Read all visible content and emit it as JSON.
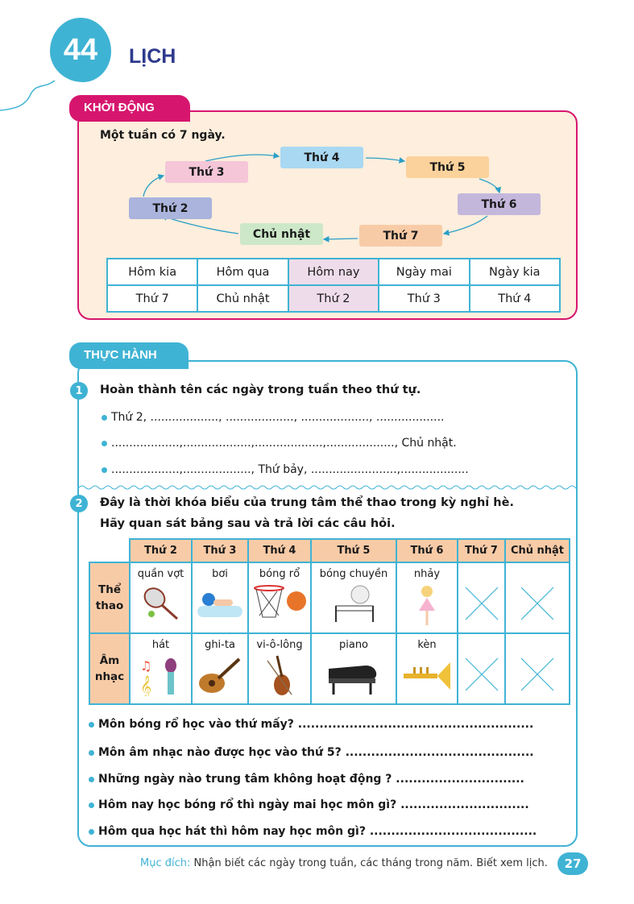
{
  "lesson": {
    "number": "44",
    "title": "LỊCH"
  },
  "warmup": {
    "tab": "KHỞI ĐỘNG",
    "intro": "Một tuần có 7 ngày.",
    "cycle": [
      {
        "label": "Thứ 2",
        "color": "#aab4dc"
      },
      {
        "label": "Thứ 3",
        "color": "#f4c6d8"
      },
      {
        "label": "Thứ 4",
        "color": "#a9d8f2"
      },
      {
        "label": "Thứ 5",
        "color": "#fbd29b"
      },
      {
        "label": "Thứ 6",
        "color": "#c4b7dc"
      },
      {
        "label": "Thứ 7",
        "color": "#f8cba7"
      },
      {
        "label": "Chủ nhật",
        "color": "#cde8c8"
      }
    ],
    "table": {
      "headers": [
        "Hôm kia",
        "Hôm qua",
        "Hôm nay",
        "Ngày mai",
        "Ngày kia"
      ],
      "values": [
        "Thứ 7",
        "Chủ nhật",
        "Thứ 2",
        "Thứ 3",
        "Thứ 4"
      ]
    }
  },
  "practice": {
    "tab": "THỰC HÀNH",
    "ex1": {
      "number": "1",
      "question": "Hoàn thành tên các ngày trong tuần theo thứ tự.",
      "lines": [
        "Thứ 2, ..................., ..................., ..................., ...................",
        "...................,...................,...................,..................., Chủ nhật.",
        "...................,..................., Thứ bảy, ........................,..................."
      ]
    },
    "ex2": {
      "number": "2",
      "question_line1": "Đây là thời khóa biểu của trung tâm thể thao trong kỳ nghỉ hè.",
      "question_line2": "Hãy quan sát bảng sau và trả lời các câu hỏi.",
      "schedule": {
        "days": [
          "Thứ 2",
          "Thứ 3",
          "Thứ 4",
          "Thứ 5",
          "Thứ 6",
          "Thứ 7",
          "Chủ nhật"
        ],
        "rows": [
          {
            "label_line1": "Thể",
            "label_line2": "thao",
            "items": [
              "quần vợt",
              "bơi",
              "bóng rổ",
              "bóng chuyền",
              "nhảy",
              "",
              ""
            ],
            "icons": [
              "tennis-racket-icon",
              "swimmer-icon",
              "basketball-icon",
              "volleyball-icon",
              "dancer-icon",
              "cross-icon",
              "cross-icon"
            ]
          },
          {
            "label_line1": "Âm",
            "label_line2": "nhạc",
            "items": [
              "hát",
              "ghi-ta",
              "vi-ô-lông",
              "piano",
              "kèn",
              "",
              ""
            ],
            "icons": [
              "microphone-icon",
              "guitar-icon",
              "violin-icon",
              "piano-icon",
              "trumpet-icon",
              "cross-icon",
              "cross-icon"
            ]
          }
        ]
      },
      "questions": [
        "Môn bóng rổ học vào thứ mấy? .......................................................",
        "Môn âm nhạc nào được học vào thứ 5? ............................................",
        "Những ngày nào trung tâm không hoạt động ? ..............................",
        "Hôm nay học bóng rổ thì ngày mai học môn gì? ..............................",
        "Hôm qua học hát thì hôm nay học môn gì? ......................................."
      ]
    }
  },
  "footer": {
    "label": "Mục đích:",
    "text": " Nhận biết các ngày trong tuần, các tháng trong năm. Biết xem lịch.",
    "page": "27"
  },
  "colors": {
    "magenta": "#d6166e",
    "teal": "#3fb3d4",
    "navy": "#2e3a8c",
    "peach": "#fdeedd"
  }
}
